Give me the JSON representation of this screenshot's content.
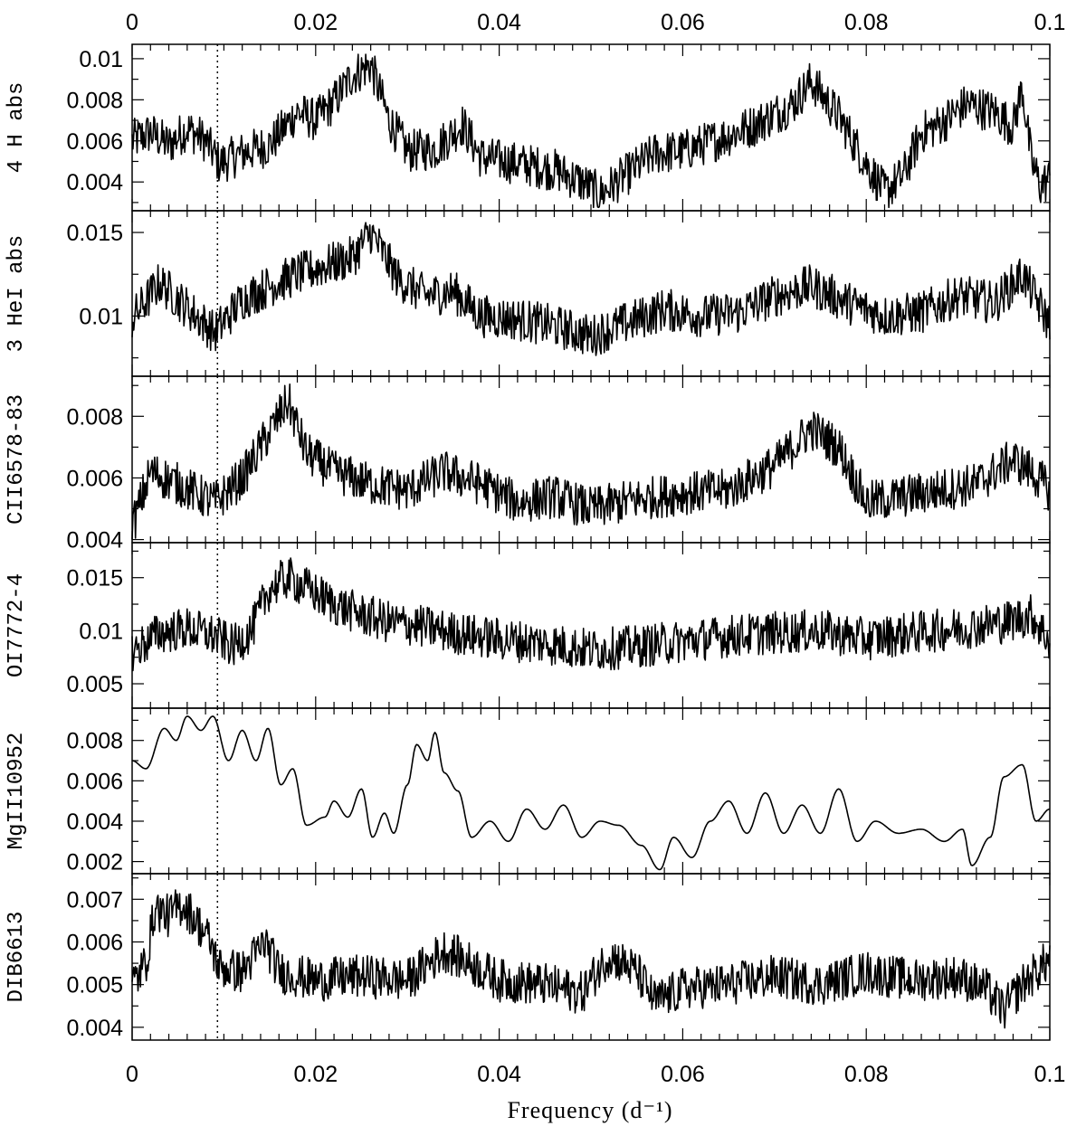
{
  "chart_data": {
    "type": "line",
    "layout": "stacked-panels",
    "xlabel": "Frequency (d⁻¹)",
    "xlim": [
      0,
      0.1
    ],
    "x_ticks": [
      "0",
      "0.02",
      "0.04",
      "0.06",
      "0.08",
      "0.1"
    ],
    "x_tick_values": [
      0,
      0.02,
      0.04,
      0.06,
      0.08,
      0.1
    ],
    "marker_line": {
      "x": 0.0093,
      "style": "dotted"
    },
    "line_color": "#000000",
    "panels": [
      {
        "label": "4 H abs",
        "ylim": [
          0.0026,
          0.0107
        ],
        "y_ticks": [
          "0.004",
          "0.006",
          "0.008",
          "0.01"
        ],
        "y_tick_values": [
          0.004,
          0.006,
          0.008,
          0.01
        ],
        "points": [
          [
            0,
            0.006
          ],
          [
            0.002,
            0.0064
          ],
          [
            0.004,
            0.0058
          ],
          [
            0.006,
            0.0066
          ],
          [
            0.008,
            0.006
          ],
          [
            0.0095,
            0.0049
          ],
          [
            0.012,
            0.0054
          ],
          [
            0.015,
            0.0058
          ],
          [
            0.018,
            0.0074
          ],
          [
            0.02,
            0.007
          ],
          [
            0.022,
            0.0079
          ],
          [
            0.024,
            0.0092
          ],
          [
            0.026,
            0.0097
          ],
          [
            0.028,
            0.007
          ],
          [
            0.03,
            0.0055
          ],
          [
            0.033,
            0.0056
          ],
          [
            0.036,
            0.0068
          ],
          [
            0.038,
            0.0052
          ],
          [
            0.042,
            0.0049
          ],
          [
            0.046,
            0.0046
          ],
          [
            0.049,
            0.004
          ],
          [
            0.051,
            0.0034
          ],
          [
            0.054,
            0.0044
          ],
          [
            0.057,
            0.0054
          ],
          [
            0.06,
            0.0055
          ],
          [
            0.064,
            0.0061
          ],
          [
            0.068,
            0.0068
          ],
          [
            0.072,
            0.0078
          ],
          [
            0.074,
            0.0089
          ],
          [
            0.077,
            0.0072
          ],
          [
            0.08,
            0.0049
          ],
          [
            0.082,
            0.0035
          ],
          [
            0.084,
            0.0043
          ],
          [
            0.086,
            0.0064
          ],
          [
            0.088,
            0.0068
          ],
          [
            0.091,
            0.0078
          ],
          [
            0.094,
            0.0074
          ],
          [
            0.096,
            0.0067
          ],
          [
            0.097,
            0.0086
          ],
          [
            0.098,
            0.005
          ],
          [
            0.099,
            0.0038
          ],
          [
            0.1,
            0.0042
          ]
        ]
      },
      {
        "label": "3 HeI abs",
        "ylim": [
          0.0064,
          0.0163
        ],
        "y_ticks": [
          "0.01",
          "0.015"
        ],
        "y_tick_values": [
          0.01,
          0.015
        ],
        "points": [
          [
            0,
            0.0098
          ],
          [
            0.003,
            0.012
          ],
          [
            0.006,
            0.0105
          ],
          [
            0.009,
            0.009
          ],
          [
            0.012,
            0.011
          ],
          [
            0.015,
            0.0118
          ],
          [
            0.018,
            0.0125
          ],
          [
            0.021,
            0.013
          ],
          [
            0.024,
            0.0135
          ],
          [
            0.026,
            0.015
          ],
          [
            0.029,
            0.0122
          ],
          [
            0.032,
            0.0112
          ],
          [
            0.035,
            0.0115
          ],
          [
            0.038,
            0.01
          ],
          [
            0.042,
            0.0098
          ],
          [
            0.046,
            0.0094
          ],
          [
            0.05,
            0.0088
          ],
          [
            0.054,
            0.0096
          ],
          [
            0.058,
            0.0104
          ],
          [
            0.062,
            0.01
          ],
          [
            0.066,
            0.0102
          ],
          [
            0.07,
            0.0112
          ],
          [
            0.074,
            0.0118
          ],
          [
            0.078,
            0.0108
          ],
          [
            0.082,
            0.01
          ],
          [
            0.086,
            0.0102
          ],
          [
            0.09,
            0.0112
          ],
          [
            0.094,
            0.0108
          ],
          [
            0.097,
            0.0125
          ],
          [
            0.1,
            0.0095
          ]
        ]
      },
      {
        "label": "CII6578-83",
        "ylim": [
          0.0039,
          0.0093
        ],
        "y_ticks": [
          "0.004",
          "0.006",
          "0.008"
        ],
        "y_tick_values": [
          0.004,
          0.006,
          0.008
        ],
        "points": [
          [
            0,
            0.0044
          ],
          [
            0.002,
            0.0062
          ],
          [
            0.005,
            0.0058
          ],
          [
            0.009,
            0.0052
          ],
          [
            0.012,
            0.006
          ],
          [
            0.015,
            0.0075
          ],
          [
            0.017,
            0.0085
          ],
          [
            0.019,
            0.0068
          ],
          [
            0.022,
            0.0062
          ],
          [
            0.026,
            0.0058
          ],
          [
            0.03,
            0.0056
          ],
          [
            0.034,
            0.0062
          ],
          [
            0.038,
            0.0058
          ],
          [
            0.042,
            0.0052
          ],
          [
            0.046,
            0.0054
          ],
          [
            0.05,
            0.005
          ],
          [
            0.055,
            0.0053
          ],
          [
            0.06,
            0.0055
          ],
          [
            0.065,
            0.0056
          ],
          [
            0.07,
            0.0064
          ],
          [
            0.074,
            0.0076
          ],
          [
            0.077,
            0.007
          ],
          [
            0.08,
            0.0052
          ],
          [
            0.084,
            0.0054
          ],
          [
            0.088,
            0.0056
          ],
          [
            0.092,
            0.0058
          ],
          [
            0.096,
            0.0066
          ],
          [
            0.098,
            0.0062
          ],
          [
            0.1,
            0.0056
          ]
        ]
      },
      {
        "label": "OI7772-4",
        "ylim": [
          0.0027,
          0.0183
        ],
        "y_ticks": [
          "0.005",
          "0.01",
          "0.015"
        ],
        "y_tick_values": [
          0.005,
          0.01,
          0.015
        ],
        "points": [
          [
            0,
            0.008
          ],
          [
            0.003,
            0.0098
          ],
          [
            0.006,
            0.0102
          ],
          [
            0.009,
            0.0095
          ],
          [
            0.011,
            0.0085
          ],
          [
            0.013,
            0.01
          ],
          [
            0.015,
            0.014
          ],
          [
            0.017,
            0.015
          ],
          [
            0.019,
            0.014
          ],
          [
            0.022,
            0.0125
          ],
          [
            0.025,
            0.0115
          ],
          [
            0.028,
            0.0108
          ],
          [
            0.031,
            0.0105
          ],
          [
            0.035,
            0.0098
          ],
          [
            0.04,
            0.0092
          ],
          [
            0.045,
            0.0088
          ],
          [
            0.05,
            0.0082
          ],
          [
            0.055,
            0.0085
          ],
          [
            0.06,
            0.009
          ],
          [
            0.065,
            0.0095
          ],
          [
            0.07,
            0.0098
          ],
          [
            0.075,
            0.01
          ],
          [
            0.08,
            0.0092
          ],
          [
            0.085,
            0.0098
          ],
          [
            0.09,
            0.0102
          ],
          [
            0.095,
            0.0108
          ],
          [
            0.098,
            0.0115
          ],
          [
            0.1,
            0.009
          ]
        ]
      },
      {
        "label": "MgII10952",
        "ylim": [
          0.0014,
          0.0096
        ],
        "y_ticks": [
          "0.002",
          "0.004",
          "0.006",
          "0.008"
        ],
        "y_tick_values": [
          0.002,
          0.004,
          0.006,
          0.008
        ],
        "points": [
          [
            0,
            0.007
          ],
          [
            0.0015,
            0.0066
          ],
          [
            0.0035,
            0.0086
          ],
          [
            0.0048,
            0.008
          ],
          [
            0.006,
            0.0092
          ],
          [
            0.0075,
            0.0085
          ],
          [
            0.0088,
            0.0092
          ],
          [
            0.0105,
            0.007
          ],
          [
            0.012,
            0.0085
          ],
          [
            0.0135,
            0.007
          ],
          [
            0.0148,
            0.0086
          ],
          [
            0.0162,
            0.0058
          ],
          [
            0.0175,
            0.0066
          ],
          [
            0.019,
            0.0038
          ],
          [
            0.021,
            0.0042
          ],
          [
            0.022,
            0.005
          ],
          [
            0.0235,
            0.0042
          ],
          [
            0.025,
            0.0056
          ],
          [
            0.0262,
            0.0032
          ],
          [
            0.0275,
            0.0044
          ],
          [
            0.0285,
            0.0034
          ],
          [
            0.03,
            0.0058
          ],
          [
            0.031,
            0.0078
          ],
          [
            0.0322,
            0.007
          ],
          [
            0.033,
            0.0084
          ],
          [
            0.034,
            0.0064
          ],
          [
            0.0355,
            0.0055
          ],
          [
            0.037,
            0.0032
          ],
          [
            0.039,
            0.004
          ],
          [
            0.041,
            0.003
          ],
          [
            0.043,
            0.0046
          ],
          [
            0.045,
            0.0036
          ],
          [
            0.047,
            0.0048
          ],
          [
            0.049,
            0.0032
          ],
          [
            0.051,
            0.004
          ],
          [
            0.053,
            0.0038
          ],
          [
            0.0555,
            0.0028
          ],
          [
            0.0575,
            0.0016
          ],
          [
            0.059,
            0.0032
          ],
          [
            0.061,
            0.0022
          ],
          [
            0.063,
            0.004
          ],
          [
            0.065,
            0.005
          ],
          [
            0.067,
            0.0034
          ],
          [
            0.069,
            0.0054
          ],
          [
            0.071,
            0.0034
          ],
          [
            0.073,
            0.0048
          ],
          [
            0.075,
            0.0034
          ],
          [
            0.077,
            0.0056
          ],
          [
            0.079,
            0.003
          ],
          [
            0.081,
            0.004
          ],
          [
            0.0835,
            0.0034
          ],
          [
            0.086,
            0.0036
          ],
          [
            0.0885,
            0.003
          ],
          [
            0.0905,
            0.0036
          ],
          [
            0.0915,
            0.0018
          ],
          [
            0.0935,
            0.0032
          ],
          [
            0.095,
            0.0062
          ],
          [
            0.097,
            0.0068
          ],
          [
            0.0985,
            0.004
          ],
          [
            0.1,
            0.0046
          ]
        ]
      },
      {
        "label": "DIB6613",
        "ylim": [
          0.0037,
          0.0076
        ],
        "y_ticks": [
          "0.004",
          "0.005",
          "0.006",
          "0.007"
        ],
        "y_tick_values": [
          0.004,
          0.005,
          0.006,
          0.007
        ],
        "points": [
          [
            0,
            0.005
          ],
          [
            0.0015,
            0.0055
          ],
          [
            0.0025,
            0.0068
          ],
          [
            0.004,
            0.0066
          ],
          [
            0.0055,
            0.0069
          ],
          [
            0.007,
            0.0065
          ],
          [
            0.0085,
            0.006
          ],
          [
            0.0095,
            0.0054
          ],
          [
            0.012,
            0.0053
          ],
          [
            0.0145,
            0.006
          ],
          [
            0.016,
            0.0053
          ],
          [
            0.02,
            0.0051
          ],
          [
            0.025,
            0.0052
          ],
          [
            0.03,
            0.0051
          ],
          [
            0.034,
            0.0058
          ],
          [
            0.036,
            0.0056
          ],
          [
            0.04,
            0.0051
          ],
          [
            0.045,
            0.005
          ],
          [
            0.049,
            0.0048
          ],
          [
            0.052,
            0.0057
          ],
          [
            0.055,
            0.0053
          ],
          [
            0.057,
            0.0046
          ],
          [
            0.06,
            0.0049
          ],
          [
            0.065,
            0.005
          ],
          [
            0.07,
            0.0052
          ],
          [
            0.075,
            0.005
          ],
          [
            0.08,
            0.0053
          ],
          [
            0.085,
            0.0051
          ],
          [
            0.09,
            0.0052
          ],
          [
            0.093,
            0.0049
          ],
          [
            0.095,
            0.0044
          ],
          [
            0.097,
            0.005
          ],
          [
            0.1,
            0.0056
          ]
        ]
      }
    ]
  }
}
